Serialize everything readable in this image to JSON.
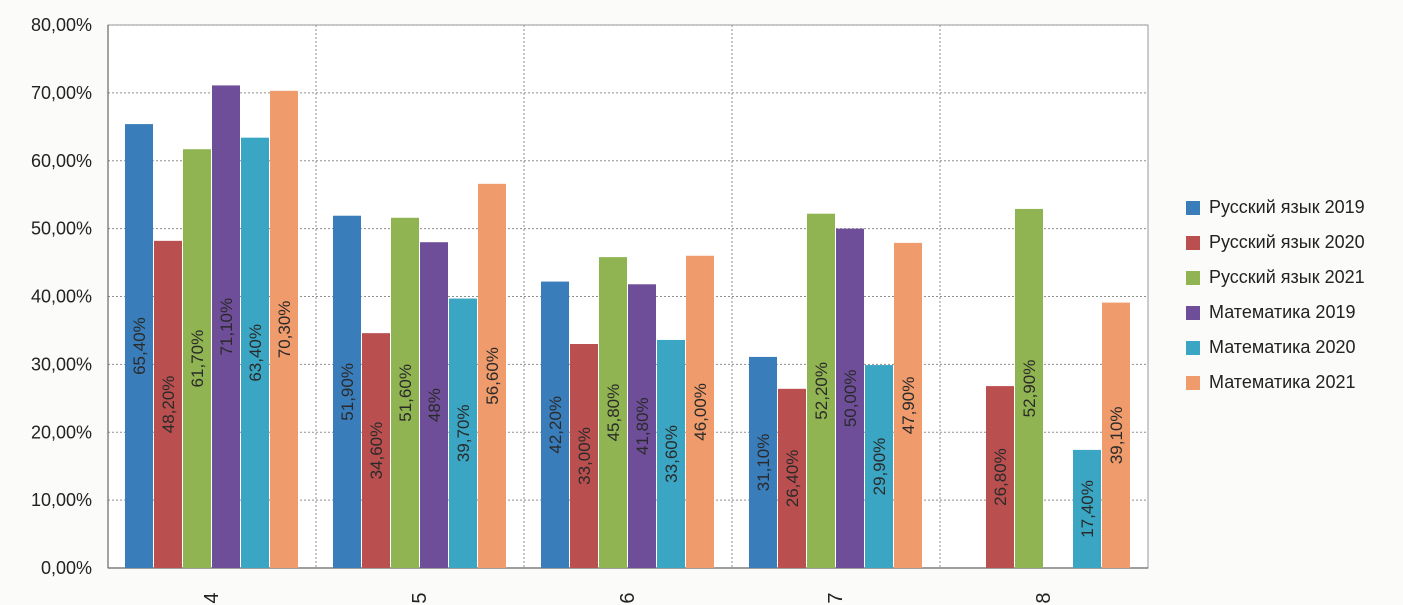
{
  "chart_data": {
    "type": "bar",
    "categories": [
      "4",
      "5",
      "6",
      "7",
      "8"
    ],
    "ylim": [
      0,
      80
    ],
    "ytick_labels": [
      "0,00%",
      "10,00%",
      "20,00%",
      "30,00%",
      "40,00%",
      "50,00%",
      "60,00%",
      "70,00%",
      "80,00%"
    ],
    "grid": true,
    "legend_position": "right",
    "series": [
      {
        "name": "Русский язык 2019",
        "color": "#3a7dbb",
        "values": [
          65.4,
          51.9,
          42.2,
          31.1,
          null
        ],
        "labels": [
          "65,40%",
          "51,90%",
          "42,20%",
          "31,10%",
          ""
        ]
      },
      {
        "name": "Русский язык 2020",
        "color": "#b9504f",
        "values": [
          48.2,
          34.6,
          33.0,
          26.4,
          26.8
        ],
        "labels": [
          "48,20%",
          "34,60%",
          "33,00%",
          "26,40%",
          "26,80%"
        ]
      },
      {
        "name": "Русский язык 2021",
        "color": "#8fb451",
        "values": [
          61.7,
          51.6,
          45.8,
          52.2,
          52.9
        ],
        "labels": [
          "61,70%",
          "51,60%",
          "45,80%",
          "52,20%",
          "52,90%"
        ]
      },
      {
        "name": "Математика 2019",
        "color": "#6f4e99",
        "values": [
          71.1,
          48.0,
          41.8,
          50.0,
          null
        ],
        "labels": [
          "71,10%",
          "48%",
          "41,80%",
          "50,00%",
          ""
        ]
      },
      {
        "name": "Математика 2020",
        "color": "#3aa6c3",
        "values": [
          63.4,
          39.7,
          33.6,
          29.9,
          17.4
        ],
        "labels": [
          "63,40%",
          "39,70%",
          "33,60%",
          "29,90%",
          "17,40%"
        ]
      },
      {
        "name": "Математика 2021",
        "color": "#ef9b6b",
        "values": [
          70.3,
          56.6,
          46.0,
          47.9,
          39.1
        ],
        "labels": [
          "70,30%",
          "56,60%",
          "46,00%",
          "47,90%",
          "39,10%"
        ]
      }
    ]
  }
}
